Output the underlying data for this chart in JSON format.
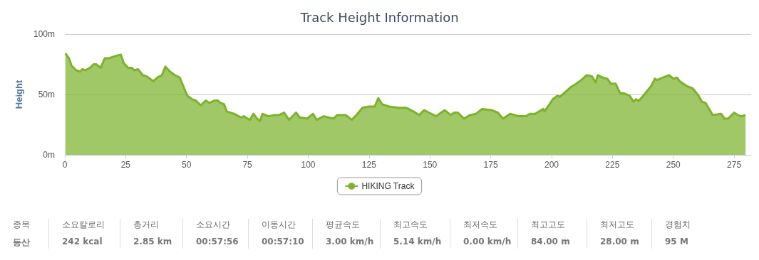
{
  "chart_data": {
    "type": "area",
    "title": "Track Height Information",
    "ylabel": "Height",
    "series": [
      {
        "name": "HIKING Track",
        "color": "#7cb32b",
        "x": [
          0.2,
          1.7,
          2.7,
          4.7,
          6.3,
          7.3,
          8.3,
          10.3,
          11.8,
          12.9,
          14.7,
          16.4,
          18,
          19.5,
          21,
          23,
          24.2,
          26,
          27.5,
          28.5,
          30,
          32,
          33.6,
          36.3,
          38,
          39.9,
          41.3,
          43.2,
          45.2,
          47.2,
          50.3,
          52.3,
          53.8,
          55.8,
          57.9,
          59.4,
          61.4,
          62.9,
          63.9,
          65.4,
          66.5,
          69.5,
          72.4,
          73.5,
          76,
          77.5,
          79,
          80.2,
          81.2,
          83.6,
          86.1,
          88.1,
          90.1,
          92.1,
          95,
          96.5,
          99.5,
          102,
          103.5,
          106.4,
          110.4,
          111.9,
          115.4,
          117.9,
          119.8,
          122.3,
          124.8,
          127.3,
          128.8,
          130.3,
          133.2,
          137.2,
          140.2,
          143.2,
          145.6,
          147.6,
          149.6,
          152.6,
          154.6,
          156.1,
          158.5,
          160,
          161.5,
          164,
          166.5,
          169,
          171.4,
          175.4,
          177.9,
          180,
          183,
          186.4,
          189.3,
          191.2,
          193.2,
          196.6,
          197.1,
          200.5,
          202.4,
          203.4,
          207.8,
          210.2,
          212.2,
          214.4,
          216.6,
          218.1,
          219,
          221,
          222.9,
          224.3,
          226.3,
          228.2,
          229.7,
          232.1,
          233.6,
          234.6,
          236,
          238.5,
          240.9,
          242.4,
          243.3,
          245.8,
          248.2,
          250.1,
          251.6,
          252.6,
          255.5,
          258,
          260.4,
          261.8,
          263.3,
          266.2,
          269.6,
          271.1,
          272.5,
          275,
          276.4,
          277.9,
          279.7
        ],
        "values": [
          84,
          80,
          74,
          70,
          69,
          71,
          70,
          72,
          75,
          75,
          72,
          80,
          80,
          81,
          82,
          83,
          76,
          72,
          72,
          70,
          71,
          66,
          65,
          61,
          64,
          66,
          73,
          69,
          66,
          64,
          49,
          46,
          45,
          41,
          45,
          43,
          45,
          45,
          43,
          42,
          36,
          34,
          31,
          32,
          29,
          34,
          30,
          28,
          34,
          32,
          33,
          33,
          35,
          29,
          35,
          31,
          30,
          34,
          29,
          32,
          30,
          33,
          33,
          29,
          33,
          39,
          40,
          40,
          47,
          42,
          40,
          39,
          39,
          36,
          33,
          37,
          35,
          32,
          35,
          37,
          33,
          35,
          35,
          30,
          33,
          34,
          38,
          37,
          35,
          30,
          34,
          32,
          32,
          34,
          34,
          38,
          36,
          46,
          49,
          48,
          56,
          59,
          62,
          66,
          65,
          60,
          66,
          64,
          63,
          59,
          59,
          51,
          51,
          49,
          44,
          46,
          45,
          51,
          57,
          63,
          62,
          64,
          66,
          63,
          64,
          61,
          57,
          55,
          49,
          44,
          43,
          33,
          34,
          30,
          30,
          35,
          33,
          32,
          33
        ]
      }
    ],
    "xlim": [
      0,
      282
    ],
    "xticks": [
      0,
      25,
      50,
      75,
      100,
      125,
      150,
      175,
      200,
      225,
      250,
      275
    ],
    "ylim": [
      0,
      100
    ],
    "yticks": [
      {
        "value": 0,
        "label": "0m"
      },
      {
        "value": 50,
        "label": "50m"
      },
      {
        "value": 100,
        "label": "100m"
      }
    ],
    "grid": "y",
    "legend": "bottom",
    "marker": "none",
    "annotations": [
      "종목\n등산",
      "소요칼로리\n242 kcal",
      "총거리\n2.85 km",
      "소요시간\n00:57:56",
      "이동시간\n00:57:10",
      "평균속도\n3.00 km/h",
      "최고속도\n5.14 km/h",
      "최저속도\n0.00 km/h",
      "최고고도\n84.00 m",
      "최저고도\n28.00 m",
      "경험치\n95 M"
    ]
  }
}
